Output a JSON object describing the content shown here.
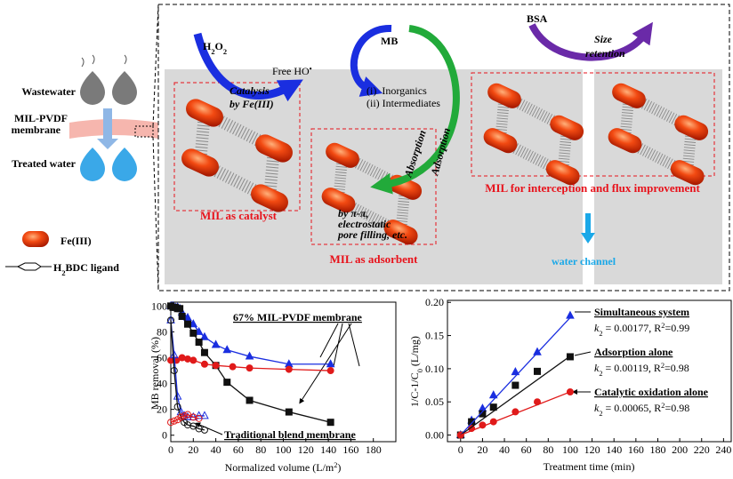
{
  "diagram": {
    "process": {
      "wastewater": "Wastewater",
      "membrane": [
        "MIL-PVDF",
        "membrane"
      ],
      "treated": "Treated water"
    },
    "legend": {
      "fe": "Fe(III)",
      "ligand": [
        "H",
        "2",
        "BDC ligand"
      ]
    },
    "catalysis": {
      "oxidant": [
        "H",
        "2",
        "O",
        "2"
      ],
      "radical": [
        "Free HO",
        "•"
      ],
      "label": [
        "Catalysis",
        "by Fe(III)"
      ],
      "box": "MIL as catalyst"
    },
    "adsorption": {
      "pollutant": "MB",
      "products": [
        "(i)  Inorganics",
        "(ii) Intermediates"
      ],
      "absorption": "Absorption",
      "adsorption": "Adsorption",
      "mechanism": [
        "by π-π,",
        "electrostatic",
        "pore filling, etc."
      ],
      "box": "MIL as adsorbent"
    },
    "retention": {
      "protein": "BSA",
      "label": [
        "Size",
        "retention"
      ],
      "box": "MIL for interception and flux improvement",
      "channel": "water channel"
    }
  },
  "chart_data": [
    {
      "type": "line",
      "ylabel": "MB removal (%)",
      "xlabel": [
        "Normalized volume (L/m",
        "2",
        ")"
      ],
      "xlim": [
        0,
        200
      ],
      "ylim": [
        -5,
        103
      ],
      "xticks": [
        0,
        20,
        40,
        60,
        80,
        100,
        120,
        140,
        160,
        180
      ],
      "yticks": [
        0,
        20,
        40,
        60,
        80,
        100
      ],
      "annotations": [
        "67% MIL-PVDF membrane",
        "Traditional blend membrane"
      ],
      "series": [
        {
          "color": "#1a2ee0",
          "marker": "triangle",
          "filled": true,
          "line": true,
          "x": [
            0,
            2,
            4,
            6,
            8,
            10,
            15,
            20,
            25,
            30,
            40,
            50,
            70,
            105,
            142
          ],
          "values": [
            100,
            100,
            99,
            99,
            98,
            95,
            91,
            86,
            80,
            76,
            70,
            66,
            61,
            55,
            55
          ]
        },
        {
          "color": "#111111",
          "marker": "square",
          "filled": true,
          "line": true,
          "x": [
            0,
            2,
            4,
            6,
            8,
            10,
            15,
            20,
            25,
            30,
            40,
            50,
            70,
            105,
            142
          ],
          "values": [
            100,
            99,
            99,
            98,
            98,
            92,
            86,
            79,
            72,
            64,
            54,
            41,
            27,
            18,
            10
          ]
        },
        {
          "color": "#e01a1a",
          "marker": "circle",
          "filled": true,
          "line": true,
          "x": [
            0,
            5,
            10,
            15,
            20,
            30,
            40,
            55,
            70,
            105,
            142
          ],
          "values": [
            58,
            58,
            60,
            59,
            58,
            55,
            54,
            53,
            52,
            51,
            50
          ]
        },
        {
          "color": "#1a2ee0",
          "marker": "triangle",
          "filled": false,
          "line": true,
          "x": [
            0,
            3,
            6,
            9,
            12,
            15,
            20,
            25,
            30
          ],
          "values": [
            89,
            62,
            30,
            18,
            15,
            14,
            14,
            15,
            15
          ]
        },
        {
          "color": "#111111",
          "marker": "circle",
          "filled": false,
          "line": true,
          "x": [
            0,
            3,
            6,
            9,
            12,
            15,
            20,
            25,
            30
          ],
          "values": [
            89,
            50,
            22,
            14,
            10,
            8,
            7,
            5,
            4
          ]
        },
        {
          "color": "#e01a1a",
          "marker": "circle",
          "filled": false,
          "line": true,
          "x": [
            0,
            3,
            6,
            9,
            12,
            15,
            20,
            25
          ],
          "values": [
            10,
            11,
            12,
            14,
            15,
            16,
            14,
            13
          ]
        }
      ]
    },
    {
      "type": "line",
      "ylabel": [
        "1/C-1/C",
        "0",
        " (L/mg)"
      ],
      "xlabel": "Treatment time (min)",
      "xlim": [
        -12,
        247
      ],
      "ylim": [
        -0.01,
        0.203
      ],
      "xticks": [
        0,
        20,
        40,
        60,
        80,
        100,
        120,
        140,
        160,
        180,
        200,
        220,
        240
      ],
      "yticks": [
        {
          "value": 0,
          "label": "0.00"
        },
        0.05,
        {
          "value": 0.1,
          "label": "0.10"
        },
        0.15,
        {
          "value": 0.2,
          "label": "0.20"
        }
      ],
      "annotations": [
        {
          "title": "Simultaneous system",
          "fit": [
            "k",
            "2",
            " = 0.00177, R",
            "2",
            "=0.99"
          ]
        },
        {
          "title": "Adsorption alone",
          "fit": [
            "k",
            "2",
            " = 0.00119, R",
            "2",
            "=0.98"
          ]
        },
        {
          "title": "Catalytic oxidation alone",
          "fit": [
            "k",
            "2",
            " = 0.00065, R",
            "2",
            "=0.98"
          ]
        }
      ],
      "series": [
        {
          "color": "#1a2ee0",
          "marker": "triangle",
          "filled": true,
          "line": false,
          "x": [
            0,
            10,
            20,
            30,
            50,
            70,
            100
          ],
          "values": [
            0,
            0.022,
            0.04,
            0.06,
            0.095,
            0.125,
            0.18
          ]
        },
        {
          "color": "#111111",
          "marker": "square",
          "filled": true,
          "line": false,
          "x": [
            0,
            10,
            20,
            30,
            50,
            70,
            100
          ],
          "values": [
            0,
            0.02,
            0.032,
            0.042,
            0.075,
            0.096,
            0.118
          ]
        },
        {
          "color": "#e01a1a",
          "marker": "circle",
          "filled": true,
          "line": false,
          "x": [
            0,
            10,
            20,
            30,
            50,
            70,
            100
          ],
          "values": [
            0,
            0.01,
            0.015,
            0.02,
            0.035,
            0.05,
            0.065
          ]
        },
        {
          "color": "#1a2ee0",
          "marker": "none",
          "filled": false,
          "line": true,
          "x": [
            0,
            100
          ],
          "values": [
            0,
            0.177
          ]
        },
        {
          "color": "#111111",
          "marker": "none",
          "filled": false,
          "line": true,
          "x": [
            0,
            100
          ],
          "values": [
            0,
            0.119
          ]
        },
        {
          "color": "#e01a1a",
          "marker": "none",
          "filled": false,
          "line": true,
          "x": [
            0,
            100
          ],
          "values": [
            0,
            0.065
          ]
        }
      ]
    }
  ]
}
